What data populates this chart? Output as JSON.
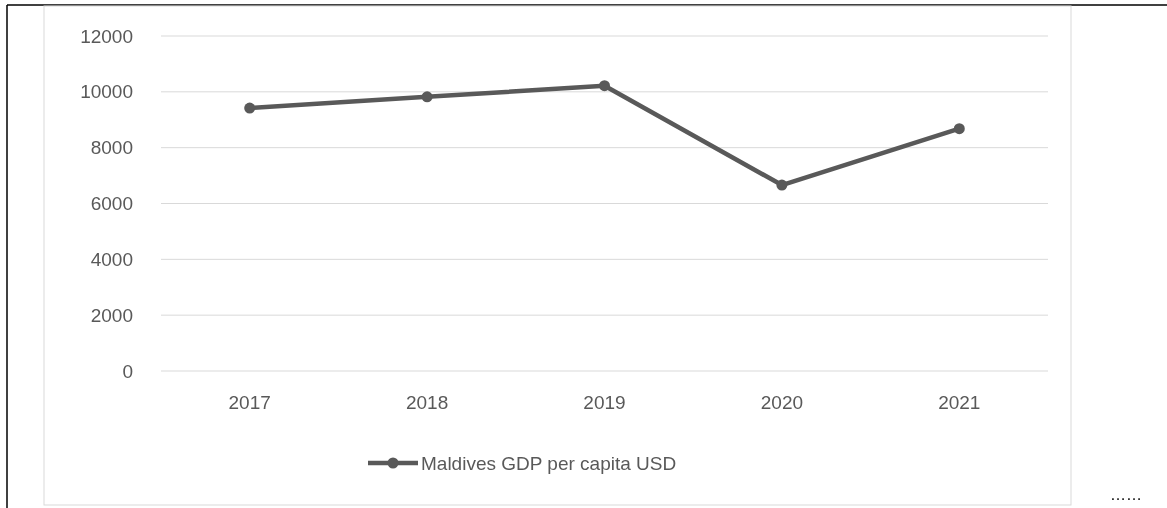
{
  "chart_data": {
    "type": "line",
    "categories": [
      "2017",
      "2018",
      "2019",
      "2020",
      "2021"
    ],
    "series": [
      {
        "name": "Maldives GDP per capita USD",
        "color": "#595959",
        "values": [
          9420,
          9820,
          10220,
          6660,
          8680
        ]
      }
    ],
    "ylim": [
      0,
      12000
    ],
    "yticks": [
      0,
      2000,
      4000,
      6000,
      8000,
      10000,
      12000
    ],
    "grid": "y",
    "legend": "bottom",
    "marker": "circle",
    "line_style": "solid",
    "annotations": [
      "……"
    ]
  }
}
